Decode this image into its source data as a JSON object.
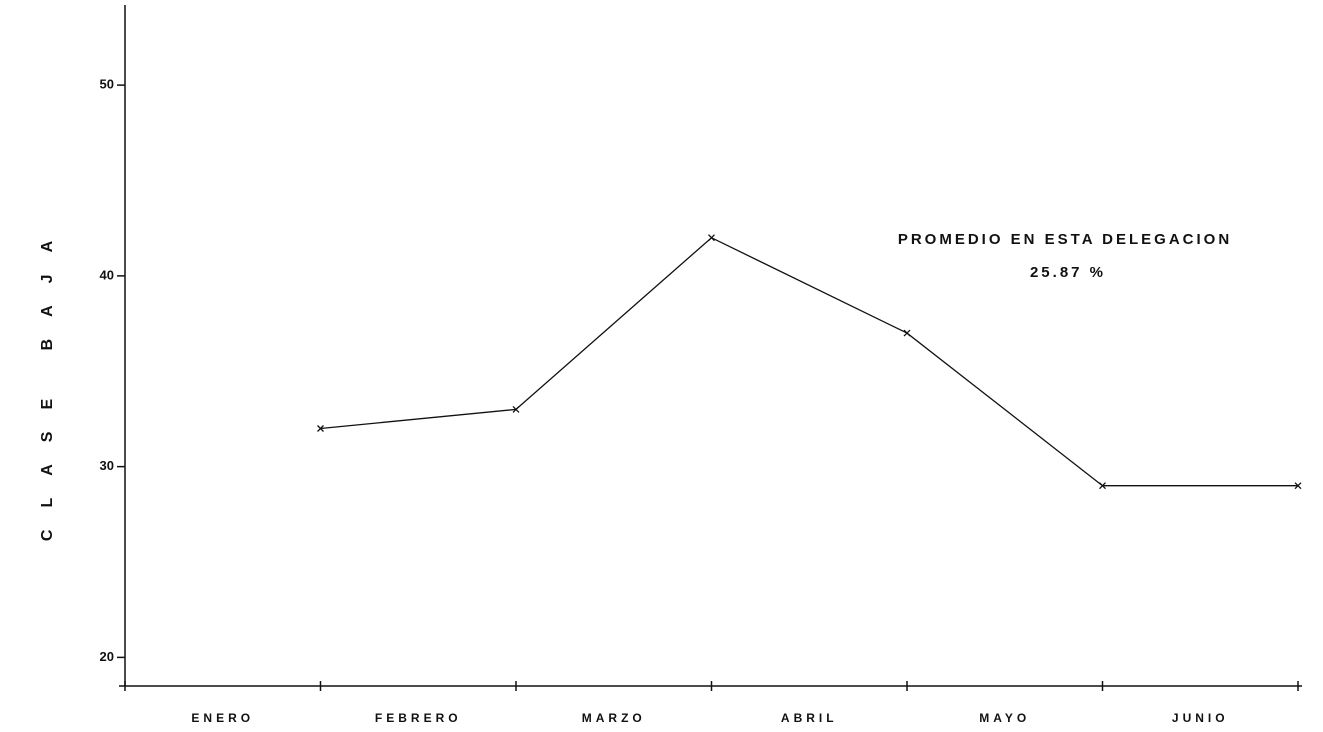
{
  "chart_data": {
    "type": "line",
    "y_label": "CLASE BAJA",
    "annotations": [
      "PROMEDIO EN ESTA DELEGACION",
      "25.87 %"
    ],
    "categories": [
      "ENERO",
      "FEBRERO",
      "MARZO",
      "ABRIL",
      "MAYO",
      "JUNIO"
    ],
    "values": [
      32,
      33,
      42,
      37,
      29,
      29
    ],
    "color": "#111111",
    "ylim": [
      18.5,
      54.2
    ],
    "yticks": [
      20,
      30,
      40,
      50
    ],
    "grid": false
  }
}
